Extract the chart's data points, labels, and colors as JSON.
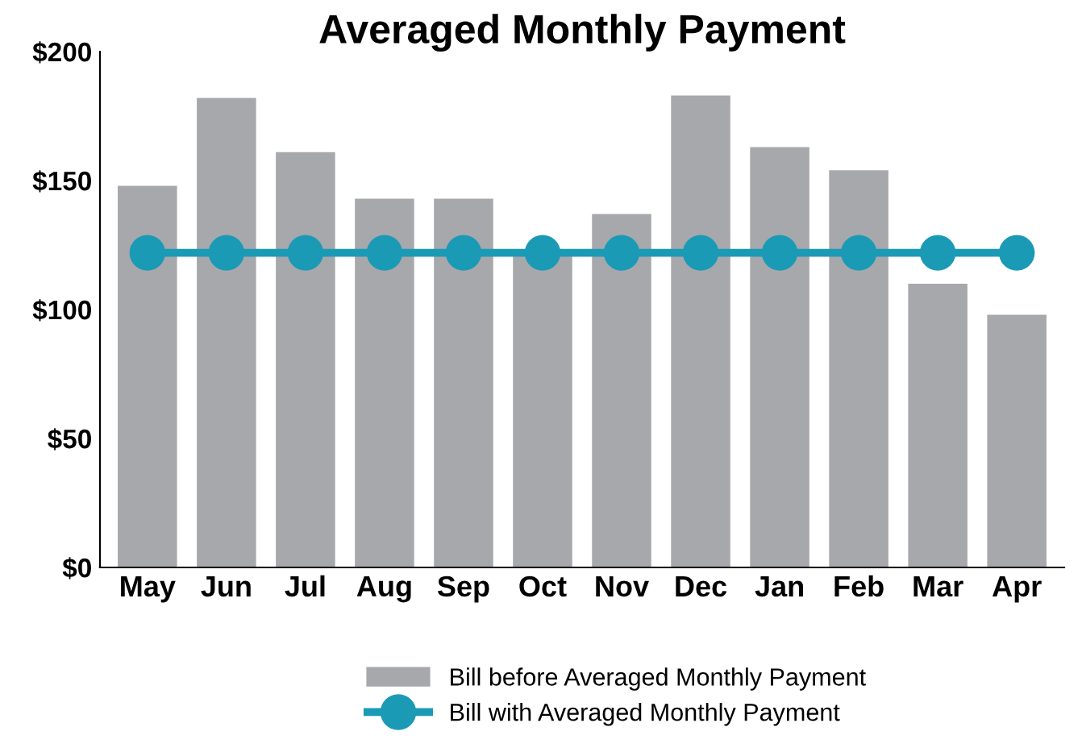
{
  "chart_data": {
    "type": "bar",
    "title": "Averaged Monthly Payment",
    "categories": [
      "May",
      "Jun",
      "Jul",
      "Aug",
      "Sep",
      "Oct",
      "Nov",
      "Dec",
      "Jan",
      "Feb",
      "Mar",
      "Apr"
    ],
    "series": [
      {
        "name": "Bill before Averaged Monthly Payment",
        "color": "#a7a8ac",
        "values": [
          148,
          182,
          161,
          143,
          143,
          122,
          137,
          183,
          163,
          154,
          110,
          98
        ]
      },
      {
        "name": "Bill with Averaged Monthly Payment",
        "type": "line",
        "color": "#1b9ab6",
        "values": [
          122,
          122,
          122,
          122,
          122,
          122,
          122,
          122,
          122,
          122,
          122,
          122
        ]
      }
    ],
    "ylim": [
      0,
      200
    ],
    "yticks": [
      {
        "value": 0,
        "label": "$0"
      },
      {
        "value": 50,
        "label": "$50"
      },
      {
        "value": 100,
        "label": "$100"
      },
      {
        "value": 150,
        "label": "$150"
      },
      {
        "value": 200,
        "label": "$200"
      }
    ],
    "grid": false,
    "legend": "bottom",
    "marker": "circle",
    "line_style": "solid"
  }
}
